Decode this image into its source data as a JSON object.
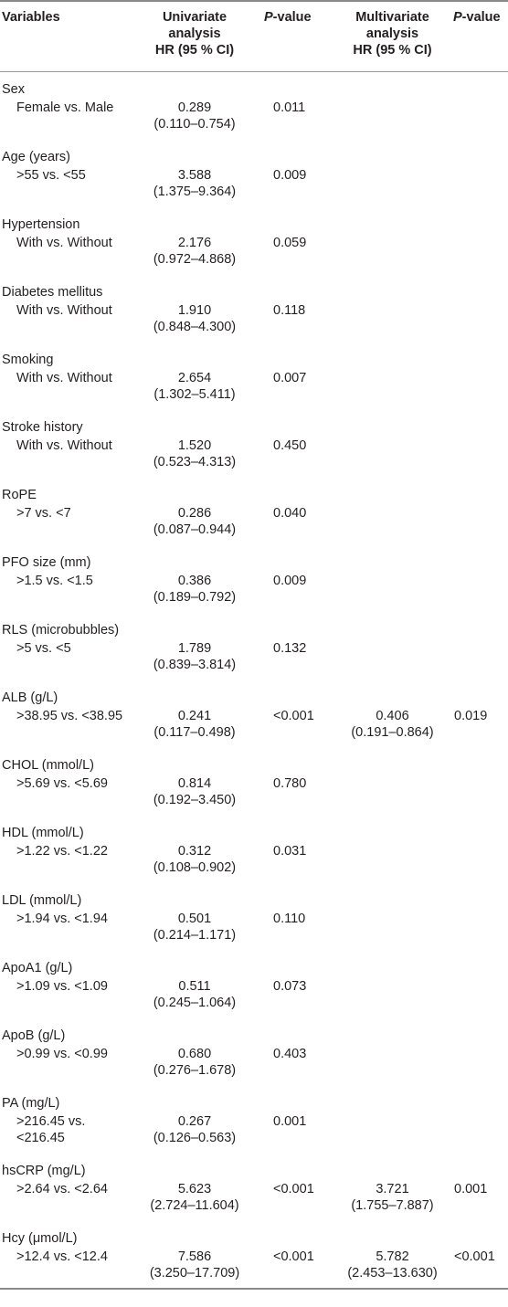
{
  "header": {
    "variables": "Variables",
    "univariate": [
      "Univariate",
      "analysis",
      "HR (95 % CI)"
    ],
    "p_italic": "P",
    "p_suffix": "-value",
    "multivariate": [
      "Multivariate",
      "analysis",
      "HR (95 % CI)"
    ]
  },
  "rows": [
    {
      "group": "Sex",
      "comparison": "Female vs. Male",
      "uni_hr": "0.289",
      "uni_ci": "(0.110–0.754)",
      "uni_p": "0.011",
      "multi_hr": "",
      "multi_ci": "",
      "multi_p": ""
    },
    {
      "group": "Age (years)",
      "comparison": ">55 vs. <55",
      "uni_hr": "3.588",
      "uni_ci": "(1.375–9.364)",
      "uni_p": "0.009",
      "multi_hr": "",
      "multi_ci": "",
      "multi_p": ""
    },
    {
      "group": "Hypertension",
      "comparison": "With vs. Without",
      "uni_hr": "2.176",
      "uni_ci": "(0.972–4.868)",
      "uni_p": "0.059",
      "multi_hr": "",
      "multi_ci": "",
      "multi_p": ""
    },
    {
      "group": "Diabetes mellitus",
      "comparison": "With vs. Without",
      "uni_hr": "1.910",
      "uni_ci": "(0.848–4.300)",
      "uni_p": "0.118",
      "multi_hr": "",
      "multi_ci": "",
      "multi_p": ""
    },
    {
      "group": "Smoking",
      "comparison": "With vs. Without",
      "uni_hr": "2.654",
      "uni_ci": "(1.302–5.411)",
      "uni_p": "0.007",
      "multi_hr": "",
      "multi_ci": "",
      "multi_p": ""
    },
    {
      "group": "Stroke history",
      "comparison": "With vs. Without",
      "uni_hr": "1.520",
      "uni_ci": "(0.523–4.313)",
      "uni_p": "0.450",
      "multi_hr": "",
      "multi_ci": "",
      "multi_p": ""
    },
    {
      "group": "RoPE",
      "comparison": ">7 vs. <7",
      "uni_hr": "0.286",
      "uni_ci": "(0.087–0.944)",
      "uni_p": "0.040",
      "multi_hr": "",
      "multi_ci": "",
      "multi_p": ""
    },
    {
      "group": "PFO size (mm)",
      "comparison": ">1.5 vs. <1.5",
      "uni_hr": "0.386",
      "uni_ci": "(0.189–0.792)",
      "uni_p": "0.009",
      "multi_hr": "",
      "multi_ci": "",
      "multi_p": ""
    },
    {
      "group": "RLS (microbubbles)",
      "comparison": ">5 vs. <5",
      "uni_hr": "1.789",
      "uni_ci": "(0.839–3.814)",
      "uni_p": "0.132",
      "multi_hr": "",
      "multi_ci": "",
      "multi_p": ""
    },
    {
      "group": "ALB (g/L)",
      "comparison": ">38.95 vs. <38.95",
      "uni_hr": "0.241",
      "uni_ci": "(0.117–0.498)",
      "uni_p": "<0.001",
      "multi_hr": "0.406",
      "multi_ci": "(0.191–0.864)",
      "multi_p": "0.019"
    },
    {
      "group": "CHOL (mmol/L)",
      "comparison": ">5.69 vs. <5.69",
      "uni_hr": "0.814",
      "uni_ci": "(0.192–3.450)",
      "uni_p": "0.780",
      "multi_hr": "",
      "multi_ci": "",
      "multi_p": ""
    },
    {
      "group": "HDL (mmol/L)",
      "comparison": ">1.22 vs. <1.22",
      "uni_hr": "0.312",
      "uni_ci": "(0.108–0.902)",
      "uni_p": "0.031",
      "multi_hr": "",
      "multi_ci": "",
      "multi_p": ""
    },
    {
      "group": "LDL (mmol/L)",
      "comparison": ">1.94 vs. <1.94",
      "uni_hr": "0.501",
      "uni_ci": "(0.214–1.171)",
      "uni_p": "0.110",
      "multi_hr": "",
      "multi_ci": "",
      "multi_p": ""
    },
    {
      "group": "ApoA1 (g/L)",
      "comparison": ">1.09 vs. <1.09",
      "uni_hr": "0.511",
      "uni_ci": "(0.245–1.064)",
      "uni_p": "0.073",
      "multi_hr": "",
      "multi_ci": "",
      "multi_p": ""
    },
    {
      "group": "ApoB (g/L)",
      "comparison": ">0.99 vs. <0.99",
      "uni_hr": "0.680",
      "uni_ci": "(0.276–1.678)",
      "uni_p": "0.403",
      "multi_hr": "",
      "multi_ci": "",
      "multi_p": ""
    },
    {
      "group": "PA (mg/L)",
      "comparison": [
        ">216.45 vs.",
        "<216.45"
      ],
      "uni_hr": "0.267",
      "uni_ci": "(0.126–0.563)",
      "uni_p": "0.001",
      "multi_hr": "",
      "multi_ci": "",
      "multi_p": ""
    },
    {
      "group": "hsCRP (mg/L)",
      "comparison": ">2.64 vs. <2.64",
      "uni_hr": "5.623",
      "uni_ci": "(2.724–11.604)",
      "uni_p": "<0.001",
      "multi_hr": "3.721",
      "multi_ci": "(1.755–7.887)",
      "multi_p": "0.001"
    },
    {
      "group": "Hcy (μmol/L)",
      "comparison": ">12.4 vs. <12.4",
      "uni_hr": "7.586",
      "uni_ci": "(3.250–17.709)",
      "uni_p": "<0.001",
      "multi_hr": "5.782",
      "multi_ci": "(2.453–13.630)",
      "multi_p": "<0.001"
    }
  ]
}
